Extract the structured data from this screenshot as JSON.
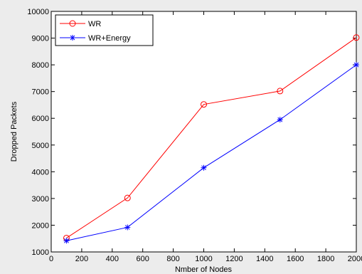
{
  "chart_data": {
    "type": "line",
    "title": "",
    "xlabel": "Nmber of Nodes",
    "ylabel": "Dropped Packets",
    "xlim": [
      0,
      2000
    ],
    "ylim": [
      1000,
      10000
    ],
    "xticks": [
      0,
      200,
      400,
      600,
      800,
      1000,
      1200,
      1400,
      1600,
      1800,
      2000
    ],
    "yticks": [
      1000,
      2000,
      3000,
      4000,
      5000,
      6000,
      7000,
      8000,
      9000,
      10000
    ],
    "grid": false,
    "legend_position": "top-left",
    "x": [
      100,
      500,
      1000,
      1500,
      2000
    ],
    "series": [
      {
        "name": "WR",
        "values": [
          1520,
          3020,
          6520,
          7020,
          9020
        ],
        "color": "#ff0000",
        "marker": "circle"
      },
      {
        "name": "WR+Energy",
        "values": [
          1420,
          1920,
          4150,
          5950,
          8000
        ],
        "color": "#0000ff",
        "marker": "asterisk"
      }
    ]
  }
}
